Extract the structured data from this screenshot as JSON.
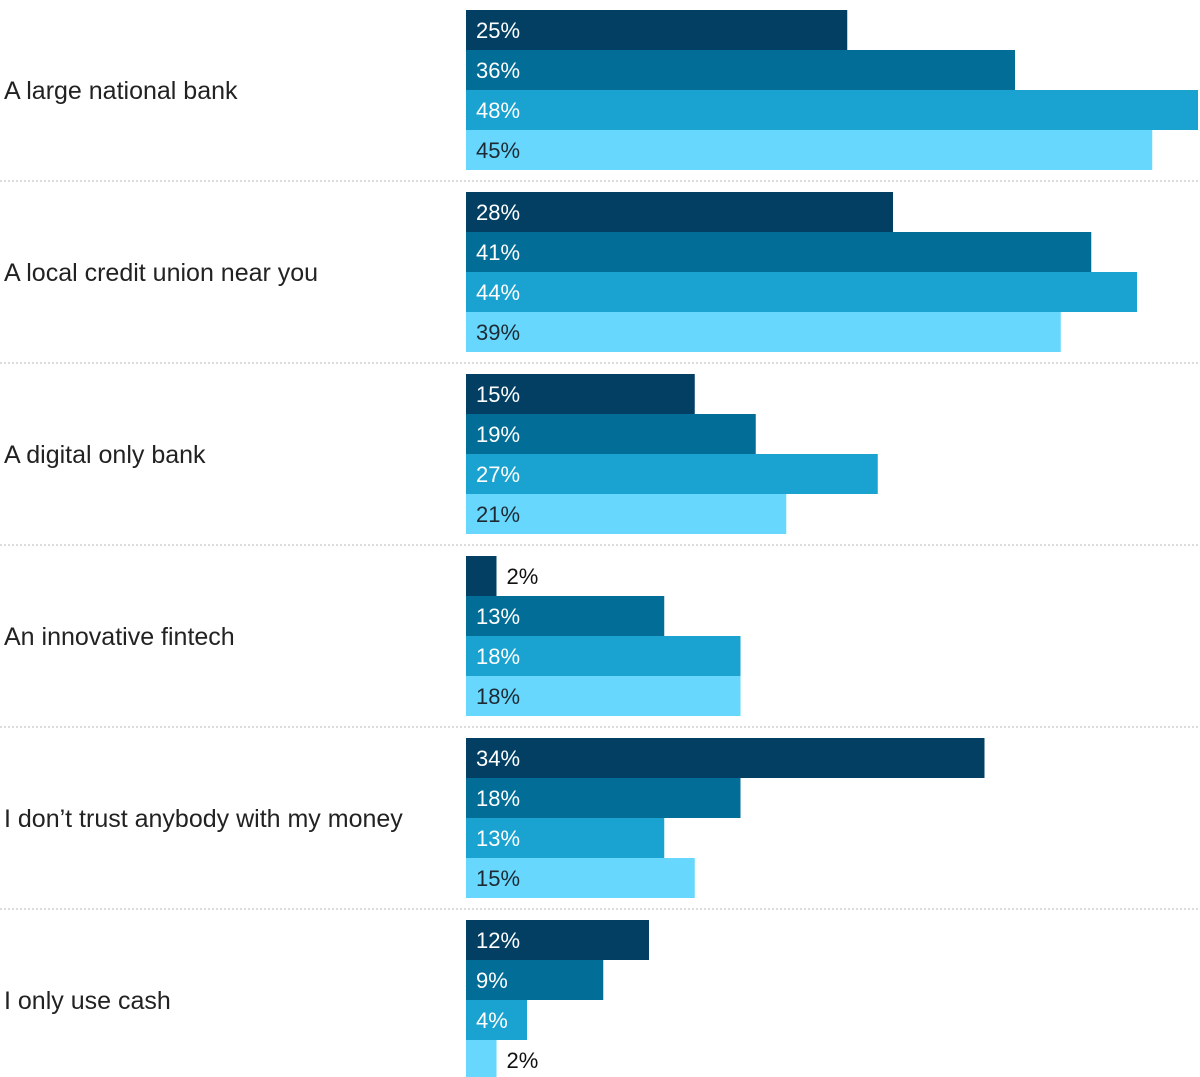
{
  "chart_data": {
    "type": "bar",
    "orientation": "horizontal",
    "categories": [
      "A large national bank",
      "A local credit union near you",
      "A digital only bank",
      "An innovative fintech",
      "I don’t trust anybody with my money",
      "I only use cash"
    ],
    "series": [
      {
        "color": "#023f63",
        "values": [
          25,
          28,
          15,
          2,
          34,
          12
        ]
      },
      {
        "color": "#026d96",
        "values": [
          36,
          41,
          19,
          13,
          18,
          9
        ]
      },
      {
        "color": "#1aa2d0",
        "values": [
          48,
          44,
          27,
          18,
          13,
          4
        ]
      },
      {
        "color": "#67d7fd",
        "values": [
          45,
          39,
          21,
          18,
          15,
          2
        ]
      }
    ],
    "value_suffix": "%",
    "xlim": [
      0,
      48
    ],
    "grid": false,
    "separators": "dotted",
    "legend": "none",
    "label_colors": {
      "inside": "#ffffff",
      "inside_light": "#1e2a33",
      "outside": "#111111"
    }
  }
}
